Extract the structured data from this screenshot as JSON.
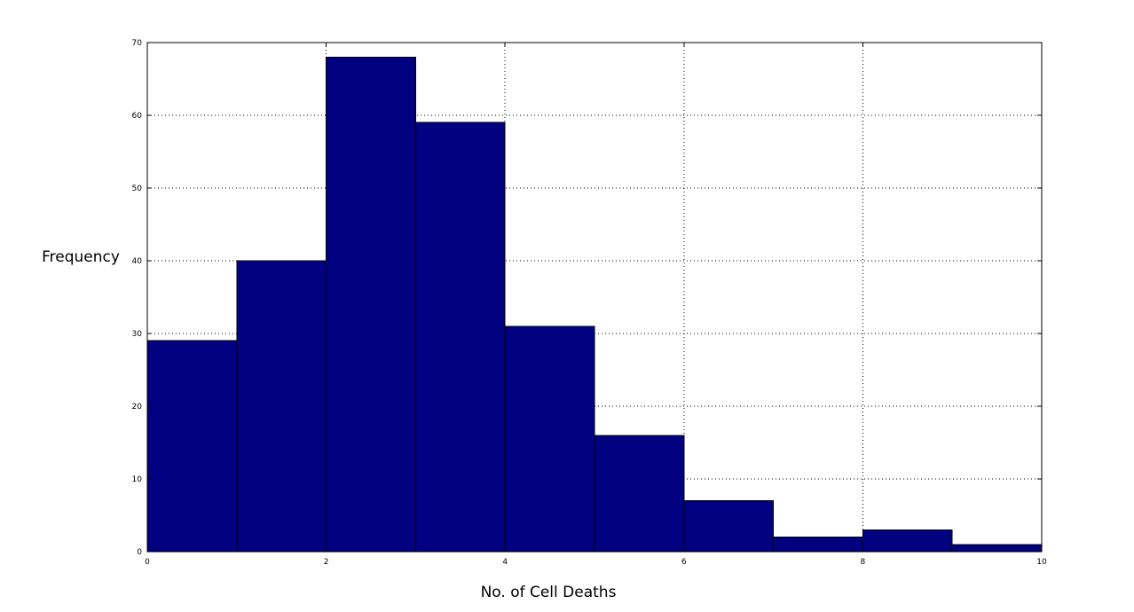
{
  "chart_data": {
    "type": "bar",
    "title": "",
    "xlabel": "No. of Cell Deaths",
    "ylabel": "Frequency",
    "bins": [
      {
        "x0": 0,
        "x1": 1,
        "value": 29
      },
      {
        "x0": 1,
        "x1": 2,
        "value": 40
      },
      {
        "x0": 2,
        "x1": 3,
        "value": 68
      },
      {
        "x0": 3,
        "x1": 4,
        "value": 59
      },
      {
        "x0": 4,
        "x1": 5,
        "value": 31
      },
      {
        "x0": 5,
        "x1": 6,
        "value": 16
      },
      {
        "x0": 6,
        "x1": 7,
        "value": 7
      },
      {
        "x0": 7,
        "x1": 8,
        "value": 2
      },
      {
        "x0": 8,
        "x1": 9,
        "value": 3
      },
      {
        "x0": 9,
        "x1": 10,
        "value": 1
      }
    ],
    "xlim": [
      0,
      10
    ],
    "ylim": [
      0,
      70
    ],
    "xticks": [
      0,
      2,
      4,
      6,
      8,
      10
    ],
    "yticks": [
      0,
      10,
      20,
      30,
      40,
      50,
      60,
      70
    ],
    "grid": true,
    "legend": "none",
    "bar_color": "#000080",
    "bar_edge_color": "#000000"
  }
}
